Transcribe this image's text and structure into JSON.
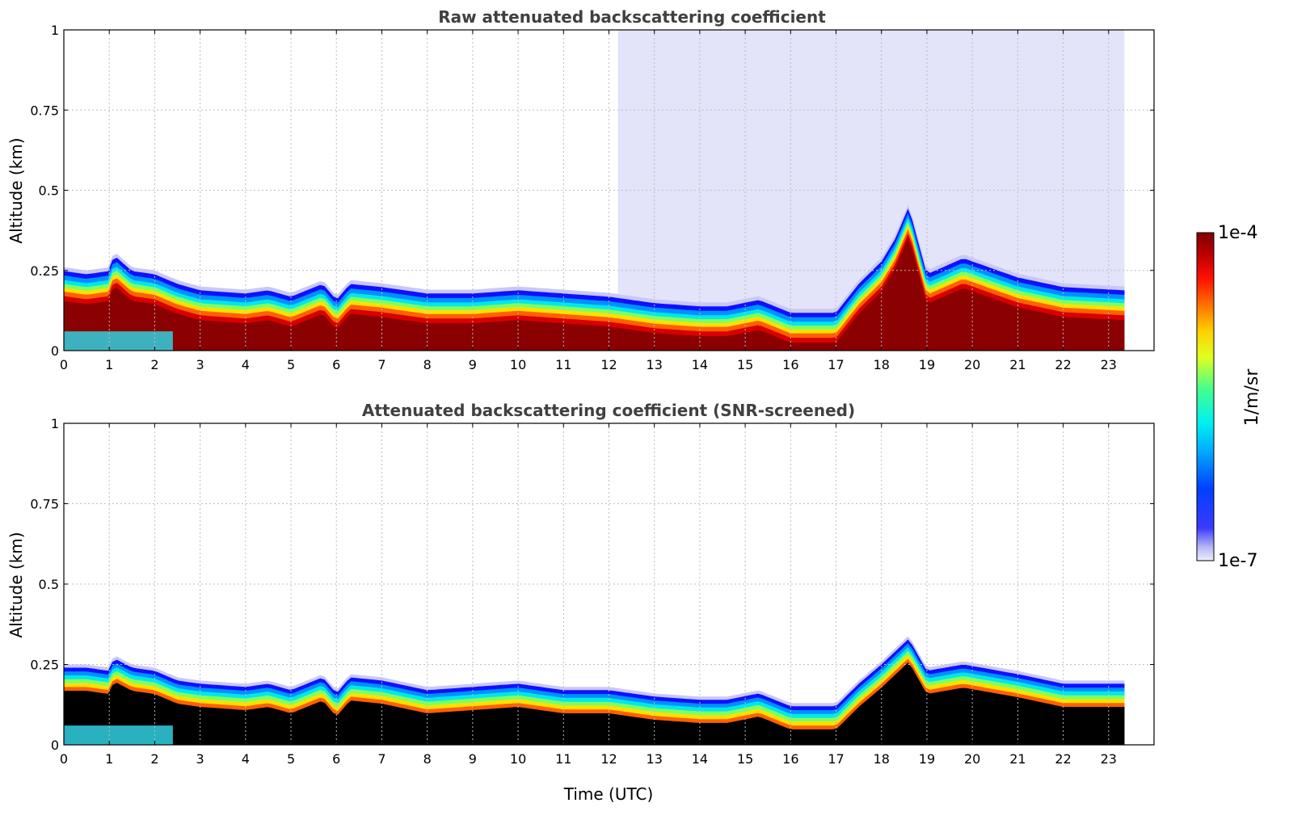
{
  "chart_data": [
    {
      "type": "heatmap",
      "title": "Raw attenuated backscattering coefficient",
      "xlabel": "",
      "ylabel": "Altitude (km)",
      "xlim": [
        0,
        24
      ],
      "ylim": [
        0,
        1
      ],
      "x_ticks": [
        "0",
        "1",
        "2",
        "3",
        "4",
        "5",
        "6",
        "7",
        "8",
        "9",
        "10",
        "11",
        "12",
        "13",
        "14",
        "15",
        "16",
        "17",
        "18",
        "19",
        "20",
        "21",
        "22",
        "23"
      ],
      "y_ticks": [
        "0",
        "0.25",
        "0.5",
        "0.75",
        "1"
      ],
      "grid": true,
      "data_end_time": 23.35,
      "profile": {
        "time": [
          0,
          0.5,
          1.0,
          1.1,
          1.5,
          2.0,
          2.5,
          3.0,
          4.0,
          4.5,
          5.0,
          5.7,
          6.0,
          6.3,
          7.0,
          8.0,
          9.0,
          10.0,
          11.0,
          12.0,
          13.0,
          14.0,
          14.6,
          15.3,
          16.0,
          17.0,
          17.5,
          18.0,
          18.3,
          18.6,
          19.0,
          19.8,
          21.0,
          22.0,
          23.35
        ],
        "layer_top_km": [
          0.26,
          0.25,
          0.26,
          0.31,
          0.26,
          0.25,
          0.22,
          0.2,
          0.19,
          0.2,
          0.18,
          0.22,
          0.17,
          0.22,
          0.21,
          0.19,
          0.19,
          0.2,
          0.19,
          0.18,
          0.16,
          0.15,
          0.15,
          0.17,
          0.13,
          0.13,
          0.22,
          0.29,
          0.36,
          0.46,
          0.25,
          0.3,
          0.24,
          0.21,
          0.2
        ]
      },
      "low_signal_fill_start_time": 12.2
    },
    {
      "type": "heatmap",
      "title": "Attenuated backscattering coefficient (SNR-screened)",
      "xlabel": "Time (UTC)",
      "ylabel": "Altitude (km)",
      "xlim": [
        0,
        24
      ],
      "ylim": [
        0,
        1
      ],
      "x_ticks": [
        "0",
        "1",
        "2",
        "3",
        "4",
        "5",
        "6",
        "7",
        "8",
        "9",
        "10",
        "11",
        "12",
        "13",
        "14",
        "15",
        "16",
        "17",
        "18",
        "19",
        "20",
        "21",
        "22",
        "23"
      ],
      "y_ticks": [
        "0",
        "0.25",
        "0.5",
        "0.75",
        "1"
      ],
      "grid": true,
      "data_end_time": 23.35,
      "profile": {
        "time": [
          0,
          0.5,
          1.0,
          1.1,
          1.5,
          2.0,
          2.5,
          3.0,
          4.0,
          4.5,
          5.0,
          5.7,
          6.0,
          6.3,
          7.0,
          8.0,
          9.0,
          10.0,
          11.0,
          12.0,
          13.0,
          14.0,
          14.6,
          15.3,
          16.0,
          17.0,
          17.5,
          18.0,
          18.3,
          18.6,
          19.0,
          19.8,
          21.0,
          22.0,
          23.35
        ],
        "layer_top_km": [
          0.25,
          0.25,
          0.24,
          0.28,
          0.25,
          0.24,
          0.21,
          0.2,
          0.19,
          0.2,
          0.18,
          0.22,
          0.17,
          0.22,
          0.21,
          0.18,
          0.19,
          0.2,
          0.18,
          0.18,
          0.16,
          0.15,
          0.15,
          0.17,
          0.13,
          0.13,
          0.2,
          0.26,
          0.3,
          0.34,
          0.24,
          0.26,
          0.23,
          0.2,
          0.2
        ]
      }
    }
  ],
  "colorbar": {
    "min_label": "1e-7",
    "max_label": "1e-4",
    "unit_label": "1/m/sr",
    "colormap": "jet",
    "low_color": "#e0e0fa",
    "high_color": "#800000"
  },
  "colors": {
    "screened_fill": "#000000",
    "faint_fill": "#e3e3fa"
  }
}
